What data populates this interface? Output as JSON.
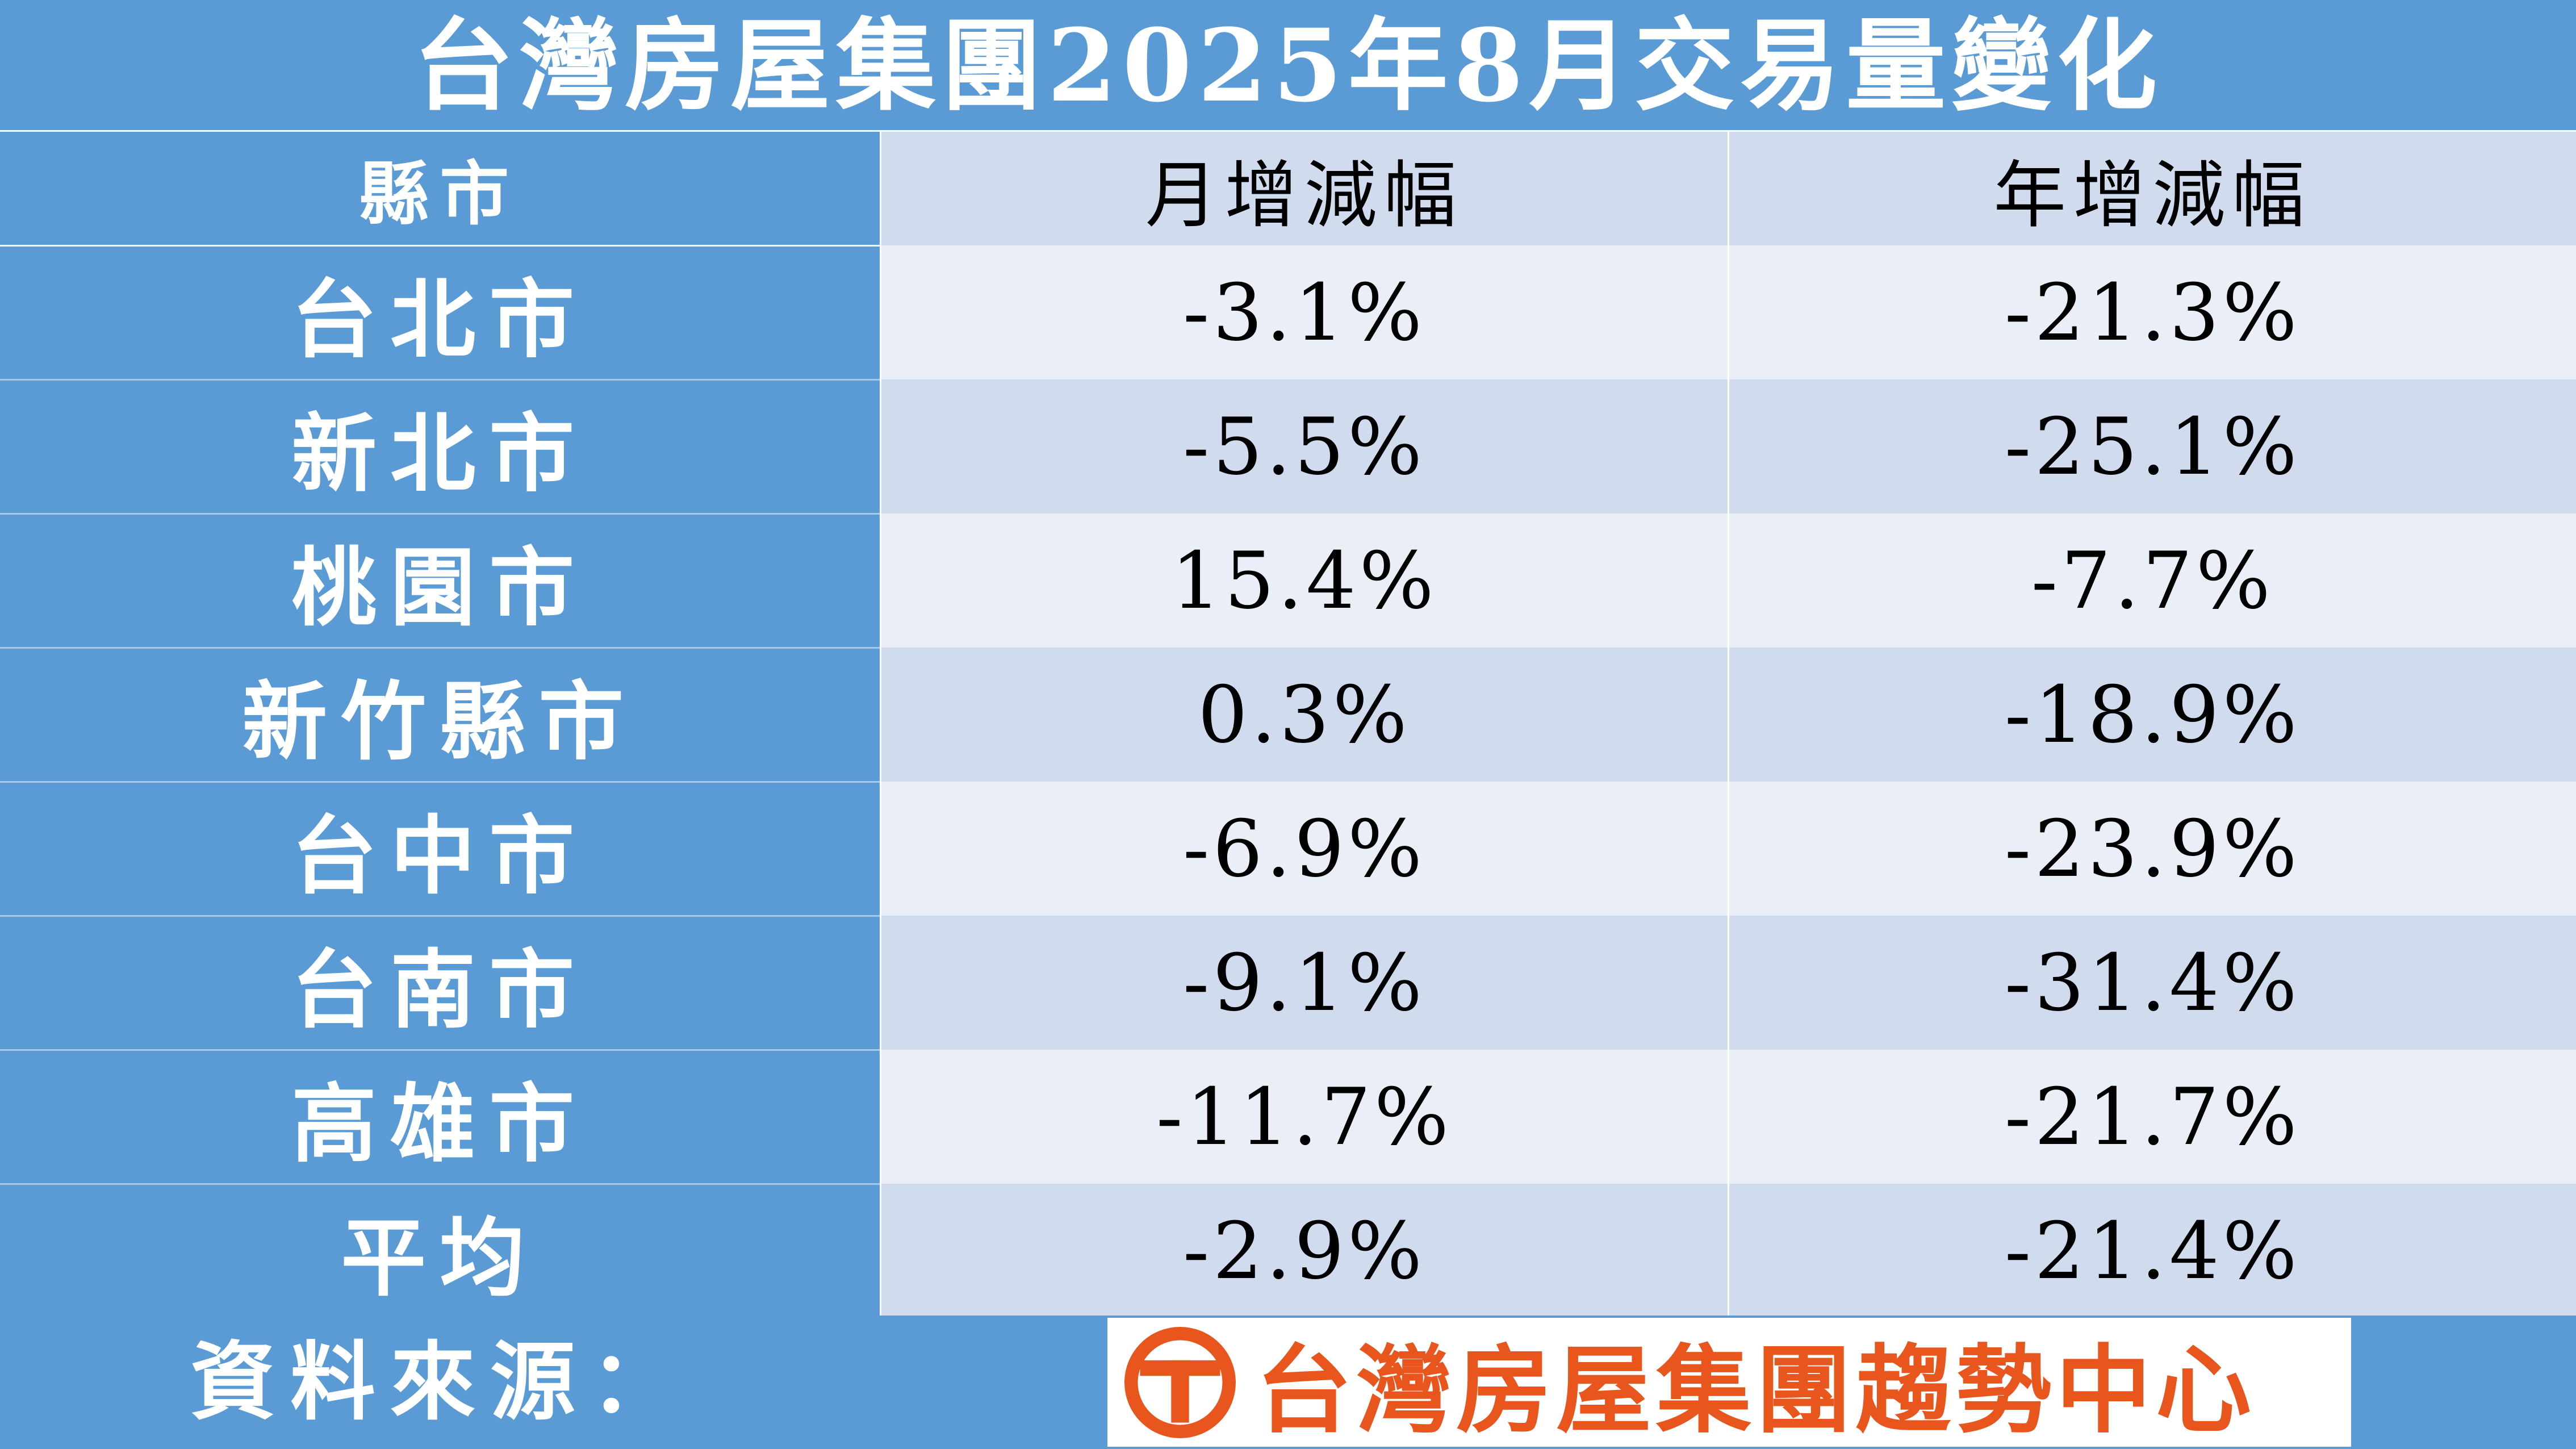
{
  "title": "台灣房屋集團2025年8月交易量變化",
  "table": {
    "headers": [
      "縣市",
      "月增減幅",
      "年增減幅"
    ],
    "rows": [
      {
        "city": "台北市",
        "mom": "-3.1%",
        "yoy": "-21.3%"
      },
      {
        "city": "新北市",
        "mom": "-5.5%",
        "yoy": "-25.1%"
      },
      {
        "city": "桃園市",
        "mom": "15.4%",
        "yoy": "-7.7%"
      },
      {
        "city": "新竹縣市",
        "mom": "0.3%",
        "yoy": "-18.9%"
      },
      {
        "city": "台中市",
        "mom": "-6.9%",
        "yoy": "-23.9%"
      },
      {
        "city": "台南市",
        "mom": "-9.1%",
        "yoy": "-31.4%"
      },
      {
        "city": "高雄市",
        "mom": "-11.7%",
        "yoy": "-21.7%"
      },
      {
        "city": "平均",
        "mom": "-2.9%",
        "yoy": "-21.4%"
      }
    ]
  },
  "footer": {
    "source_label": "資料來源：",
    "logo_text": "台灣房屋集團趨勢中心",
    "logo_icon": "taiwan-realty-logo-icon"
  },
  "colors": {
    "header_blue": "#5b9bd5",
    "row_light": "#e9eef7",
    "row_mid": "#d0dcee",
    "logo_orange": "#e8551d"
  }
}
